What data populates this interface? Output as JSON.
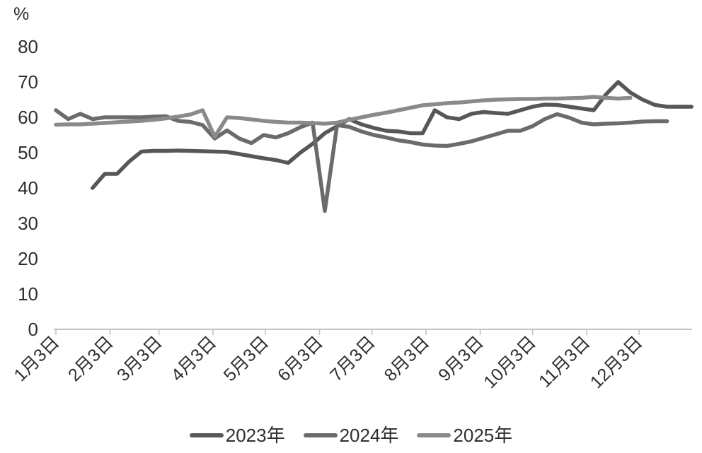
{
  "chart_data": {
    "type": "line",
    "title": "",
    "ylabel": "%",
    "ylim": [
      0,
      80
    ],
    "yticks": [
      0,
      10,
      20,
      30,
      40,
      50,
      60,
      70,
      80
    ],
    "x_tick_labels": [
      "1月3日",
      "2月3日",
      "3月3日",
      "4月3日",
      "5月3日",
      "6月3日",
      "7月3日",
      "8月3日",
      "9月3日",
      "10月3日",
      "11月3日",
      "12月3日"
    ],
    "grid": false,
    "legend_position": "bottom",
    "x_unit": "weekly points, week 0 = 1月3日",
    "axis_color": "#c3c3c3",
    "text_color": "#2f2f2f",
    "series": [
      {
        "name": "2023年",
        "color": "#575757",
        "start_week": 3,
        "values": [
          40,
          44,
          44,
          47.5,
          50.3,
          50.5,
          50.5,
          50.6,
          50.5,
          50.4,
          50.3,
          50.2,
          49.6,
          49,
          48.4,
          47.9,
          47.1,
          50,
          52.5,
          55.5,
          57.5,
          59.5,
          58,
          57,
          56.2,
          56,
          55.5,
          55.5,
          62,
          60,
          59.5,
          61,
          61.5,
          61.2,
          61,
          62,
          63,
          63.6,
          63.5,
          63,
          62.5,
          62,
          66.5,
          70,
          67,
          65,
          63.5,
          63,
          63,
          63
        ]
      },
      {
        "name": "2024年",
        "color": "#6b6b6b",
        "start_week": 0,
        "values": [
          62,
          59.5,
          61,
          59.5,
          60,
          60,
          60,
          60,
          60.2,
          60.3,
          59,
          58.7,
          57.8,
          54,
          56.3,
          54,
          52.7,
          55,
          54.3,
          55.5,
          57.2,
          58.5,
          33.5,
          57.8,
          57.3,
          56,
          55,
          54.3,
          53.5,
          53,
          52.3,
          52,
          51.9,
          52.5,
          53.2,
          54.2,
          55.2,
          56.2,
          56.2,
          57.5,
          59.5,
          60.9,
          59.9,
          58.5,
          58,
          58.2,
          58.3,
          58.5,
          58.8,
          58.9,
          58.9
        ]
      },
      {
        "name": "2025年",
        "color": "#8a8a8a",
        "start_week": 0,
        "values": [
          57.9,
          58,
          58,
          58.2,
          58.4,
          58.6,
          58.8,
          59,
          59.3,
          59.7,
          60.2,
          60.8,
          62,
          54.5,
          60,
          59.8,
          59.4,
          59,
          58.7,
          58.5,
          58.5,
          58.4,
          58.2,
          58.5,
          59.3,
          60,
          60.7,
          61.3,
          62,
          62.7,
          63.4,
          63.7,
          64,
          64.2,
          64.5,
          64.8,
          65,
          65.1,
          65.2,
          65.2,
          65.3,
          65.3,
          65.4,
          65.5,
          65.8,
          65.5,
          65.3,
          65.5
        ]
      }
    ]
  }
}
